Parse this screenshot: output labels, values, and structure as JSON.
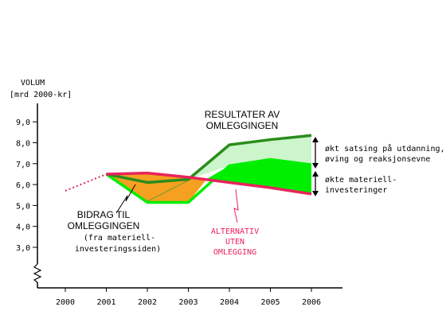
{
  "chart_data": {
    "type": "line",
    "ylabel_line1": "VOLUM",
    "ylabel_line2": "[mrd 2000-kr]",
    "xlabel": "",
    "x": [
      2000,
      2001,
      2002,
      2003,
      2004,
      2005,
      2006
    ],
    "x_tick_labels": [
      "2000",
      "2001",
      "2002",
      "2003",
      "2004",
      "2005",
      "2006"
    ],
    "y_ticks": [
      3.0,
      4.0,
      5.0,
      6.0,
      7.0,
      8.0,
      9.0
    ],
    "y_tick_labels": [
      "3,0",
      "4,0",
      "5,0",
      "6,0",
      "7,0",
      "8,0",
      "9,0"
    ],
    "ylim": [
      2.0,
      9.7
    ],
    "axis_break": true,
    "grid": false,
    "series": [
      {
        "name": "ALTERNATIV UTEN OMLEGGING",
        "color": "#e8245c",
        "x": [
          2001,
          2002,
          2003,
          2004,
          2005,
          2006
        ],
        "values": [
          6.5,
          6.55,
          6.35,
          6.1,
          5.85,
          5.55
        ]
      },
      {
        "name": "",
        "color": "#2a8c1c",
        "x": [
          2001,
          2002,
          2003,
          2004,
          2005,
          2006
        ],
        "values": [
          6.5,
          6.1,
          6.25,
          7.9,
          8.15,
          8.35
        ]
      },
      {
        "name": "",
        "color": "#00ee00",
        "x": [
          2001,
          2002,
          2003,
          2004,
          2005,
          2006
        ],
        "values": [
          6.5,
          5.15,
          5.15,
          6.9,
          7.2,
          6.95
        ]
      },
      {
        "name": "",
        "style": "dotted",
        "color": "#e8245c",
        "x": [
          2000,
          2001
        ],
        "values": [
          5.7,
          6.5
        ]
      }
    ],
    "annotations": {
      "resultater": [
        "RESULTATER AV",
        "OMLEGGINGEN"
      ],
      "bidrag": [
        "BIDRAG TIL",
        "OMLEGGINGEN"
      ],
      "bidrag_sub": [
        "(fra materiell-",
        "investeringssiden)"
      ],
      "alternativ": [
        "ALTERNATIV",
        "UTEN",
        "OMLEGGING"
      ],
      "okt_satsing": [
        "økt satsing på utdanning,",
        "øving og reaksjonsevne"
      ],
      "okte_materiell": [
        "økte materiell-",
        "investeringer"
      ]
    },
    "colors": {
      "bidrag_fill": "#f5a020",
      "green_fill": "#00ee00",
      "light_green_fill": "#ccf5cc",
      "alternativ_text": "#e8245c"
    }
  }
}
